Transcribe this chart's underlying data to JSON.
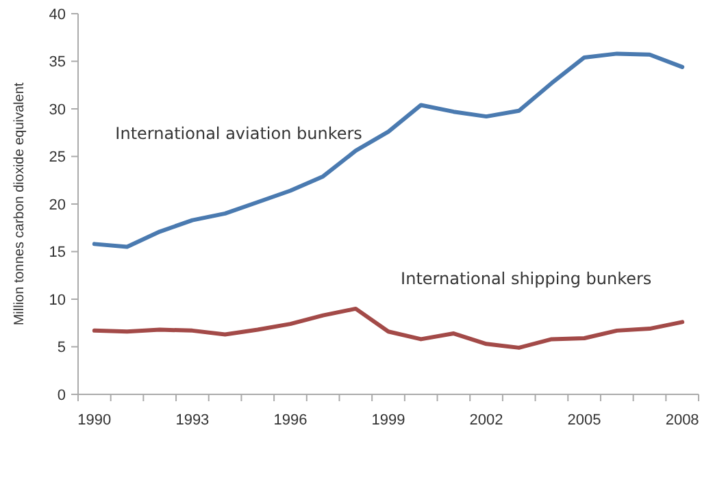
{
  "chart_data": {
    "type": "line",
    "ylabel": "Million tonnes carbon dioxide equivalent",
    "categories": [
      "1990",
      null,
      null,
      "1993",
      null,
      null,
      "1996",
      null,
      null,
      "1999",
      null,
      null,
      "2002",
      null,
      null,
      "2005",
      null,
      null,
      "2008"
    ],
    "ylim": [
      0,
      40
    ],
    "yticks": [
      0,
      5,
      10,
      15,
      20,
      25,
      30,
      35,
      40
    ],
    "grid": false,
    "series": [
      {
        "name": "International aviation bunkers",
        "color": "#4a7ab0",
        "values": [
          15.8,
          15.5,
          17.1,
          18.3,
          19.0,
          20.2,
          21.4,
          22.9,
          25.6,
          27.6,
          30.4,
          29.7,
          29.2,
          29.8,
          32.7,
          35.4,
          35.8,
          35.7,
          34.4
        ]
      },
      {
        "name": "International shipping bunkers",
        "color": "#a34a48",
        "values": [
          6.7,
          6.6,
          6.8,
          6.7,
          6.3,
          6.8,
          7.4,
          8.3,
          9.0,
          6.6,
          5.8,
          6.4,
          5.3,
          4.9,
          5.8,
          5.9,
          6.7,
          6.9,
          7.6
        ]
      }
    ]
  }
}
